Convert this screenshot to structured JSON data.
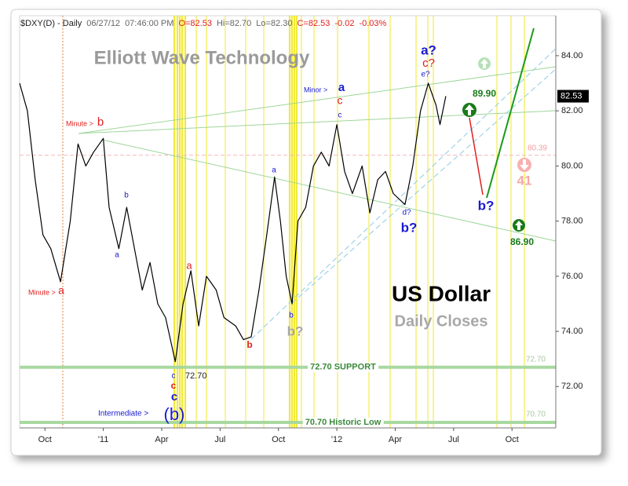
{
  "chart_data": {
    "type": "line",
    "title": "Elliott Wave Technology",
    "subtitle": "US Dollar",
    "caption": "Daily Closes",
    "header": [
      "$DXY(D) - Daily",
      "06/27/12",
      "07:46:00 PM",
      "O=82.53",
      "Hi=82.70",
      "Lo=82.30",
      "C=82.53",
      "-0.02",
      "-0.03%"
    ],
    "xlim": [
      -1.3,
      26.25
    ],
    "xticks": [
      {
        "value": 0,
        "label": "Oct"
      },
      {
        "value": 3,
        "label": "'11"
      },
      {
        "value": 6,
        "label": "Apr"
      },
      {
        "value": 9,
        "label": "Jul"
      },
      {
        "value": 12,
        "label": "Oct"
      },
      {
        "value": 15,
        "label": "'12"
      },
      {
        "value": 18,
        "label": "Apr"
      },
      {
        "value": 21,
        "label": "Jul"
      },
      {
        "value": 24,
        "label": "Oct"
      }
    ],
    "ylim": [
      70.5,
      85.45
    ],
    "yticks": [
      {
        "value": 72,
        "label": "72.00"
      },
      {
        "value": 74,
        "label": "74.00"
      },
      {
        "value": 76,
        "label": "76.00"
      },
      {
        "value": 78,
        "label": "78.00"
      },
      {
        "value": 80,
        "label": "80.00"
      },
      {
        "value": 82,
        "label": "82.00"
      },
      {
        "value": 84,
        "label": "84.00"
      }
    ],
    "grid": false,
    "series": [
      {
        "color": "#000000",
        "x": [
          -1.3,
          -0.9,
          -0.5,
          -0.1,
          0.3,
          0.8,
          1.3,
          1.7,
          2.1,
          2.5,
          3.0,
          3.3,
          3.8,
          4.2,
          4.6,
          5.0,
          5.4,
          5.8,
          6.2,
          6.7,
          7.1,
          7.5,
          7.9,
          8.3,
          8.8,
          9.2,
          9.8,
          10.2,
          10.6,
          11.0,
          11.4,
          11.8,
          12.1,
          12.4,
          12.7,
          13.0,
          13.4,
          13.8,
          14.2,
          14.6,
          15.0,
          15.4,
          15.8,
          16.3,
          16.7,
          17.1,
          17.5,
          17.9,
          18.5,
          18.9,
          19.3,
          19.7,
          20.1,
          20.3,
          20.6
        ],
        "values": [
          83.0,
          82.0,
          79.5,
          77.5,
          77.0,
          75.8,
          78.0,
          80.8,
          80.0,
          80.5,
          81.0,
          78.5,
          77.0,
          78.5,
          77.0,
          75.5,
          76.5,
          75.0,
          74.5,
          72.9,
          75.0,
          76.2,
          74.2,
          76.0,
          75.5,
          74.5,
          74.2,
          73.7,
          73.8,
          75.5,
          77.5,
          79.6,
          78.0,
          76.0,
          75.0,
          78.0,
          78.5,
          80.0,
          80.5,
          80.0,
          81.5,
          79.8,
          79.0,
          80.0,
          78.3,
          79.5,
          79.8,
          79.0,
          78.6,
          80.0,
          82.0,
          83.0,
          82.2,
          81.5,
          82.53
        ]
      }
    ],
    "last_price": {
      "value": 82.53,
      "label": "82.53"
    },
    "reference_lines": [
      {
        "value": 72.7,
        "label": "72.70 SUPPORT",
        "value_label": "72.70",
        "color": "#a8d8a0"
      },
      {
        "value": 70.7,
        "label": "70.70 Historic Low",
        "value_label": "70.70",
        "color": "#a8d8a0"
      },
      {
        "value": 80.39,
        "value_label": "80.39",
        "color": "#f4b8b8"
      }
    ],
    "annotations": [
      "Minute >",
      "b",
      "Minute >",
      "a",
      "b",
      "a",
      "a",
      "c",
      "c",
      "c",
      "(b)",
      "Intermediate >",
      "72.70",
      "b",
      "a",
      "b",
      "b?",
      "Minor >",
      "a",
      "c",
      "c",
      "d?",
      "b?",
      "a?",
      "c?",
      "e?",
      "89.90",
      "b?",
      "86.90",
      "41"
    ]
  }
}
